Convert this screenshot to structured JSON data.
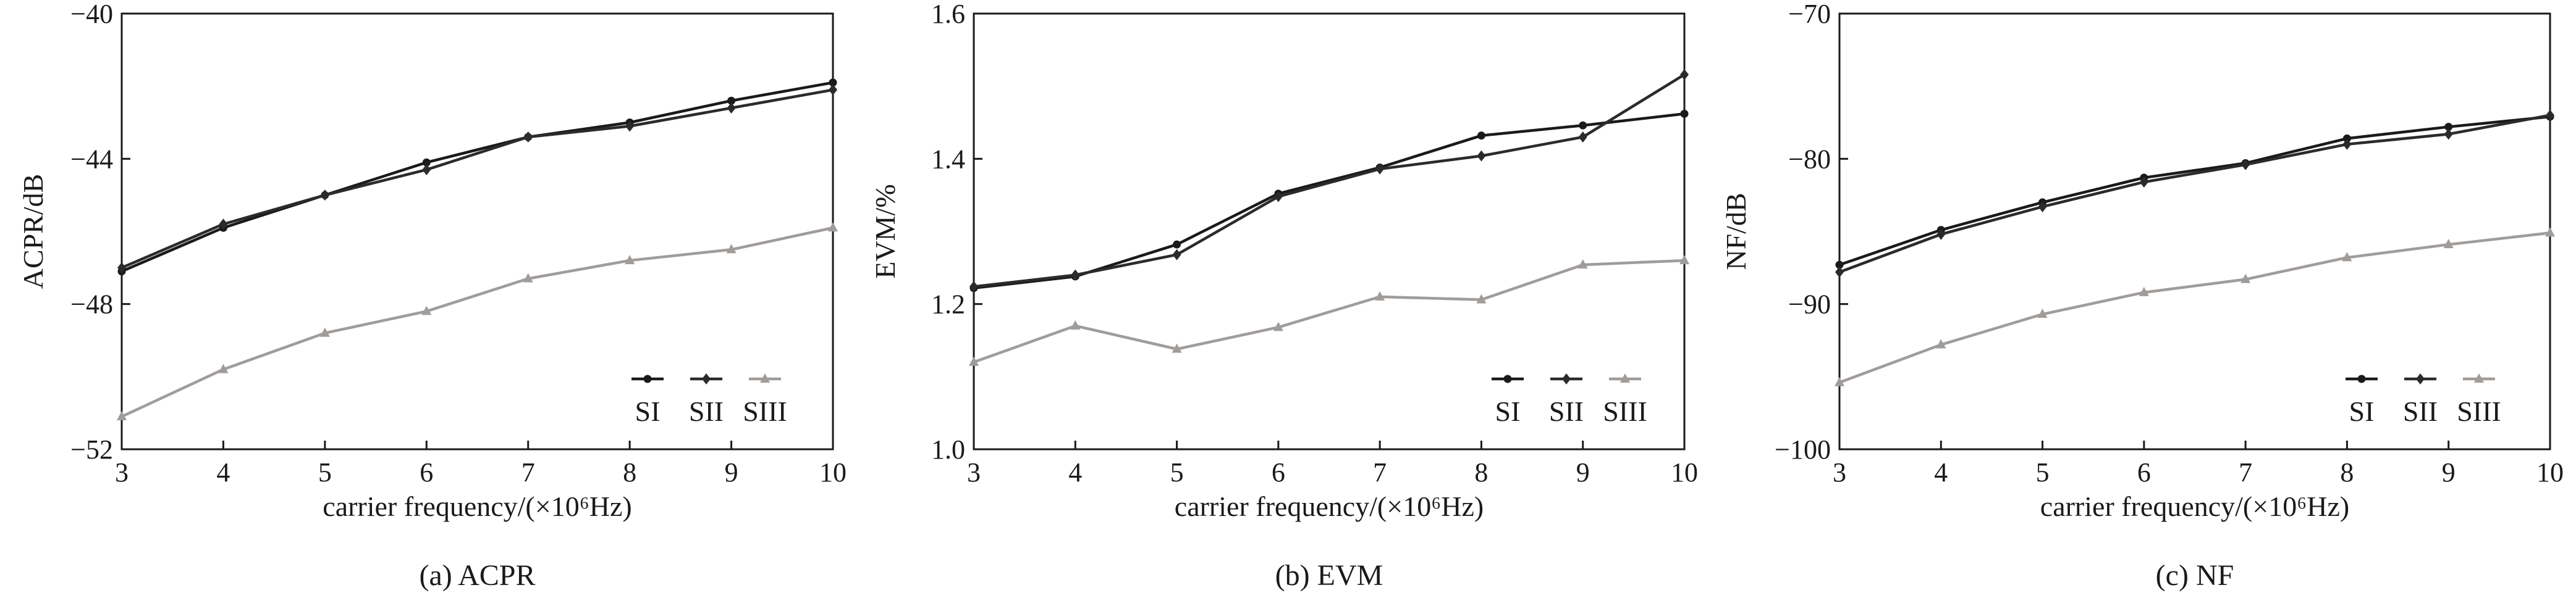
{
  "series_styles": [
    {
      "color": "#1a1a1a",
      "marker": "circle"
    },
    {
      "color": "#2b2b2b",
      "marker": "diamond"
    },
    {
      "color": "#a09c9a",
      "marker": "triangle"
    }
  ],
  "chart_data": [
    {
      "type": "line",
      "caption": "(a) ACPR",
      "xlabel": "carrier frequency/(×10⁶Hz)",
      "ylabel": "ACPR/dB",
      "x": [
        3,
        4,
        5,
        6,
        7,
        8,
        9,
        10
      ],
      "xlim": [
        3,
        10
      ],
      "xticks": [
        "3",
        "4",
        "5",
        "6",
        "7",
        "8",
        "9",
        "10"
      ],
      "ylim": [
        -52,
        -40
      ],
      "yticks": [
        -52,
        -48,
        -44,
        -40
      ],
      "ytick_labels": [
        "−52",
        "−48",
        "−44",
        "−40"
      ],
      "legend_position": "bottom-right",
      "series": [
        {
          "name": "SI",
          "values": [
            -47.1,
            -45.9,
            -45.0,
            -44.1,
            -43.4,
            -43.0,
            -42.4,
            -41.9
          ]
        },
        {
          "name": "SII",
          "values": [
            -47.0,
            -45.8,
            -45.0,
            -44.3,
            -43.4,
            -43.1,
            -42.6,
            -42.1
          ]
        },
        {
          "name": "SIII",
          "values": [
            -51.1,
            -49.8,
            -48.8,
            -48.2,
            -47.3,
            -46.8,
            -46.5,
            -45.9
          ]
        }
      ]
    },
    {
      "type": "line",
      "caption": "(b) EVM",
      "xlabel": "carrier frequency/(×10⁶Hz)",
      "ylabel": "EVM/%",
      "x": [
        3,
        4,
        5,
        6,
        7,
        8,
        9,
        10
      ],
      "xlim": [
        3,
        10
      ],
      "xticks": [
        "3",
        "4",
        "5",
        "6",
        "7",
        "8",
        "9",
        "10"
      ],
      "ylim": [
        1.0,
        1.6
      ],
      "yticks": [
        1.0,
        1.2,
        1.4,
        1.6
      ],
      "ytick_labels": [
        "1.0",
        "1.2",
        "1.4",
        "1.6"
      ],
      "legend_position": "bottom-right",
      "series": [
        {
          "name": "SI",
          "values": [
            1.222,
            1.238,
            1.282,
            1.352,
            1.388,
            1.432,
            1.446,
            1.462
          ]
        },
        {
          "name": "SII",
          "values": [
            1.224,
            1.24,
            1.268,
            1.348,
            1.386,
            1.404,
            1.43,
            1.516
          ]
        },
        {
          "name": "SIII",
          "values": [
            1.12,
            1.17,
            1.138,
            1.168,
            1.21,
            1.206,
            1.254,
            1.26
          ]
        }
      ]
    },
    {
      "type": "line",
      "caption": "(c) NF",
      "xlabel": "carrier frequency/(×10⁶Hz)",
      "ylabel": "NF/dB",
      "x": [
        3,
        4,
        5,
        6,
        7,
        8,
        9,
        10
      ],
      "xlim": [
        3,
        10
      ],
      "xticks": [
        "3",
        "4",
        "5",
        "6",
        "7",
        "8",
        "9",
        "10"
      ],
      "ylim": [
        -100,
        -70
      ],
      "yticks": [
        -100,
        -90,
        -80,
        -70
      ],
      "ytick_labels": [
        "−100",
        "−90",
        "−80",
        "−70"
      ],
      "legend_position": "bottom-right",
      "series": [
        {
          "name": "SI",
          "values": [
            -87.3,
            -84.9,
            -83.0,
            -81.3,
            -80.3,
            -78.6,
            -77.8,
            -77.1
          ]
        },
        {
          "name": "SII",
          "values": [
            -87.8,
            -85.2,
            -83.3,
            -81.6,
            -80.4,
            -79.0,
            -78.3,
            -77.0
          ]
        },
        {
          "name": "SIII",
          "values": [
            -95.4,
            -92.8,
            -90.7,
            -89.2,
            -88.3,
            -86.8,
            -85.9,
            -85.1
          ]
        }
      ]
    }
  ]
}
